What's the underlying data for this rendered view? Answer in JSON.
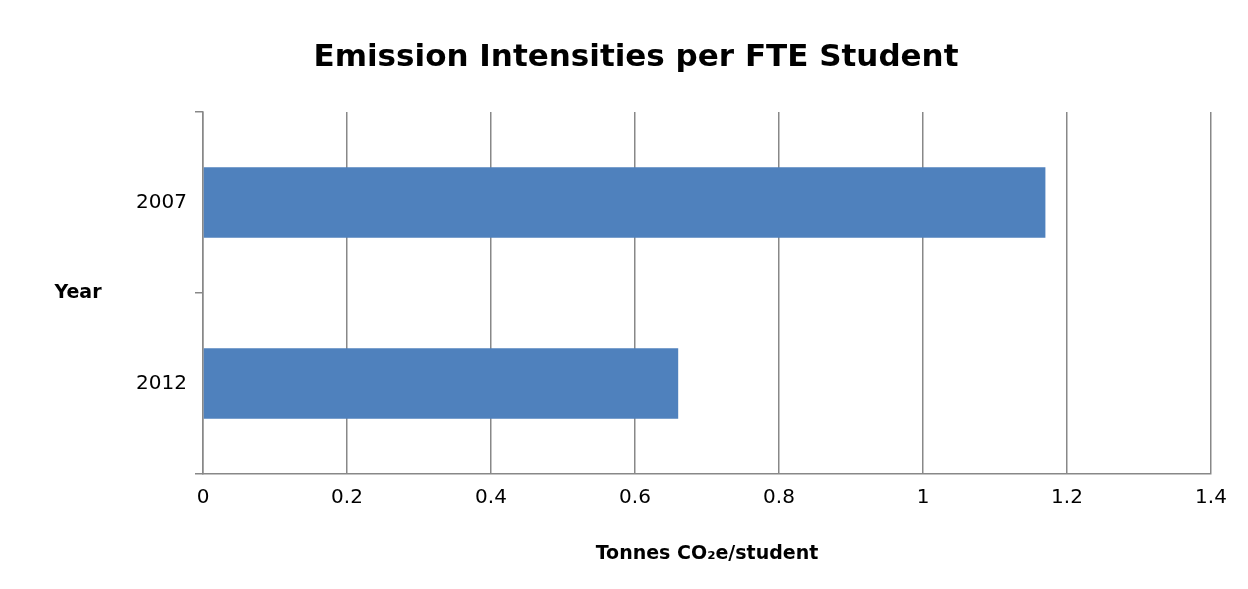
{
  "chart_data": {
    "type": "bar",
    "orientation": "horizontal",
    "title": "Emission Intensities per FTE Student",
    "xlabel": "Tonnes CO₂e/student",
    "ylabel": "Year",
    "categories": [
      "2007",
      "2012"
    ],
    "values": [
      1.17,
      0.66
    ],
    "color": "#4f81bd",
    "xlim": [
      0,
      1.4
    ],
    "xticks": [
      0,
      0.2,
      0.4,
      0.6,
      0.8,
      1,
      1.2,
      1.4
    ],
    "grid": "x"
  }
}
